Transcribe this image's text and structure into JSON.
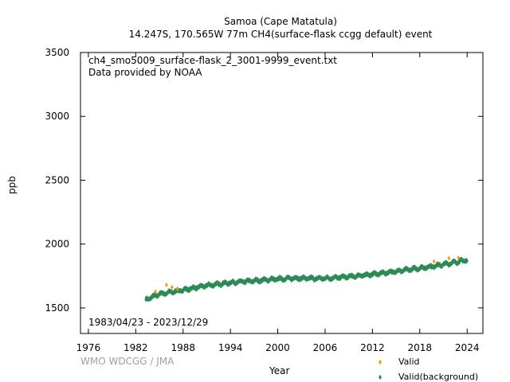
{
  "chart_data": {
    "type": "scatter",
    "title": "Samoa (Cape Matatula)",
    "subtitle": "14.247S, 170.565W 77m    CH4(surface-flask ccgg default) event",
    "file_name": "ch4_smo5009_surface-flask_2_3001-9999_event.txt",
    "provider": "Data provided by NOAA",
    "date_range": "1983/04/23 - 2023/12/29",
    "xlabel": "Year",
    "ylabel": "ppb",
    "credit": "WMO WDCGG / JMA",
    "xlim": [
      1975,
      2026
    ],
    "ylim": [
      1300,
      3500
    ],
    "xticks": [
      1976,
      1982,
      1988,
      1994,
      2000,
      2006,
      2012,
      2018,
      2024
    ],
    "yticks": [
      1500,
      2000,
      2500,
      3000,
      3500
    ],
    "grid": false,
    "legend_position": "bottom-right",
    "series": [
      {
        "name": "Valid",
        "color": "#e69f00",
        "marker": "diamond",
        "points": [
          [
            1984.5,
            1628
          ],
          [
            1985.9,
            1680
          ],
          [
            1986.6,
            1662
          ],
          [
            1987.3,
            1648
          ],
          [
            2019.8,
            1864
          ],
          [
            2021.7,
            1889
          ],
          [
            2022.9,
            1893
          ]
        ]
      },
      {
        "name": "Valid(background)",
        "color": "#2e8b57",
        "marker": "diamond",
        "trend": [
          [
            1983.3,
            1565
          ],
          [
            1985,
            1608
          ],
          [
            1988,
            1640
          ],
          [
            1991,
            1675
          ],
          [
            1994,
            1698
          ],
          [
            1997,
            1712
          ],
          [
            1999,
            1722
          ],
          [
            2002,
            1733
          ],
          [
            2005,
            1730
          ],
          [
            2007,
            1735
          ],
          [
            2010,
            1750
          ],
          [
            2013,
            1770
          ],
          [
            2016,
            1795
          ],
          [
            2019,
            1820
          ],
          [
            2021,
            1840
          ],
          [
            2023.99,
            1876
          ]
        ],
        "spread": 14
      }
    ]
  }
}
